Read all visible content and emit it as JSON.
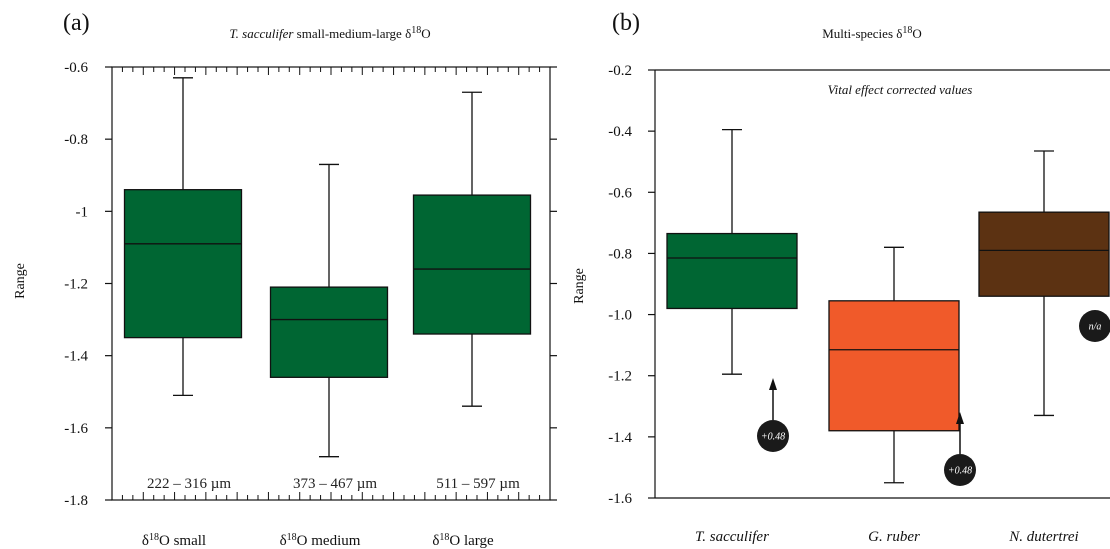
{
  "chart_data": [
    {
      "type": "box",
      "panel_label": "(a)",
      "title_italic": "T. sacculifer",
      "title_rest": " small-medium-large δ18O",
      "ylabel": "Range",
      "ylim": [
        -1.8,
        -0.6
      ],
      "yticks": [
        "-0.6",
        "-0.8",
        "-1",
        "-1.2",
        "-1.4",
        "-1.6",
        "-1.8"
      ],
      "ytick_values": [
        -0.6,
        -0.8,
        -1.0,
        -1.2,
        -1.4,
        -1.6,
        -1.8
      ],
      "categories": [
        "δ18O small",
        "δ18O medium",
        "δ18O large"
      ],
      "boxes": [
        {
          "whisker_high": -0.63,
          "q3": -0.94,
          "median": -1.09,
          "q1": -1.35,
          "whisker_low": -1.51,
          "color": "#006633",
          "size_label": "222 – 316 µm"
        },
        {
          "whisker_high": -0.87,
          "q3": -1.21,
          "median": -1.3,
          "q1": -1.46,
          "whisker_low": -1.68,
          "color": "#006633",
          "size_label": "373 – 467 µm"
        },
        {
          "whisker_high": -0.67,
          "q3": -0.955,
          "median": -1.16,
          "q1": -1.34,
          "whisker_low": -1.54,
          "color": "#006633",
          "size_label": "511 – 597 µm"
        }
      ]
    },
    {
      "type": "box",
      "panel_label": "(b)",
      "title": "Multi-species δ18O",
      "subtitle": "Vital effect corrected values",
      "ylabel": "Range",
      "ylim": [
        -1.6,
        -0.2
      ],
      "yticks": [
        "-0.2",
        "-0.4",
        "-0.6",
        "-0.8",
        "-1.0",
        "-1.2",
        "-1.4",
        "-1.6"
      ],
      "ytick_values": [
        -0.2,
        -0.4,
        -0.6,
        -0.8,
        -1.0,
        -1.2,
        -1.4,
        -1.6
      ],
      "categories": [
        "T. sacculifer",
        "G. ruber",
        "N. dutertrei"
      ],
      "boxes": [
        {
          "whisker_high": -0.395,
          "q3": -0.735,
          "median": -0.815,
          "q1": -0.98,
          "whisker_low": -1.195,
          "color": "#006633",
          "correction": "+0.48"
        },
        {
          "whisker_high": -0.78,
          "q3": -0.955,
          "median": -1.115,
          "q1": -1.38,
          "whisker_low": -1.55,
          "color": "#f05a2a",
          "correction": "+0.48"
        },
        {
          "whisker_high": -0.465,
          "q3": -0.665,
          "median": -0.79,
          "q1": -0.94,
          "whisker_low": -1.33,
          "color": "#5c3212",
          "correction": "n/a"
        }
      ]
    }
  ]
}
